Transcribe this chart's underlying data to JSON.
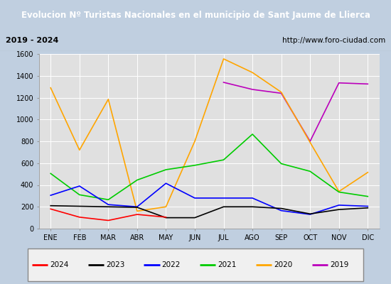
{
  "title": "Evolucion Nº Turistas Nacionales en el municipio de Sant Jaume de Llierca",
  "subtitle_left": "2019 - 2024",
  "subtitle_right": "http://www.foro-ciudad.com",
  "months": [
    "ENE",
    "FEB",
    "MAR",
    "ABR",
    "MAY",
    "JUN",
    "JUL",
    "AGO",
    "SEP",
    "OCT",
    "NOV",
    "DIC"
  ],
  "series": {
    "2024": [
      180,
      105,
      75,
      130,
      105,
      null,
      null,
      null,
      null,
      null,
      null,
      null
    ],
    "2023": [
      210,
      205,
      200,
      195,
      100,
      100,
      200,
      200,
      185,
      135,
      175,
      190
    ],
    "2022": [
      305,
      390,
      220,
      200,
      415,
      280,
      280,
      280,
      165,
      130,
      215,
      205
    ],
    "2021": [
      505,
      310,
      265,
      445,
      540,
      580,
      630,
      865,
      595,
      525,
      335,
      295
    ],
    "2020": [
      1290,
      720,
      1185,
      160,
      200,
      800,
      1555,
      1430,
      1250,
      790,
      340,
      515
    ],
    "2019": [
      null,
      null,
      null,
      null,
      null,
      null,
      1340,
      1275,
      1240,
      800,
      1335,
      1325
    ]
  },
  "colors": {
    "2024": "#ff0000",
    "2023": "#000000",
    "2022": "#0000ff",
    "2021": "#00cc00",
    "2020": "#ffa500",
    "2019": "#bb00bb"
  },
  "ylim": [
    0,
    1600
  ],
  "yticks": [
    0,
    200,
    400,
    600,
    800,
    1000,
    1200,
    1400,
    1600
  ],
  "title_bg_color": "#2255aa",
  "title_text_color": "#ffffff",
  "plot_bg_color": "#e0e0e0",
  "outer_bg_color": "#c0cfe0",
  "grid_color": "#ffffff",
  "legend_order": [
    "2024",
    "2023",
    "2022",
    "2021",
    "2020",
    "2019"
  ]
}
